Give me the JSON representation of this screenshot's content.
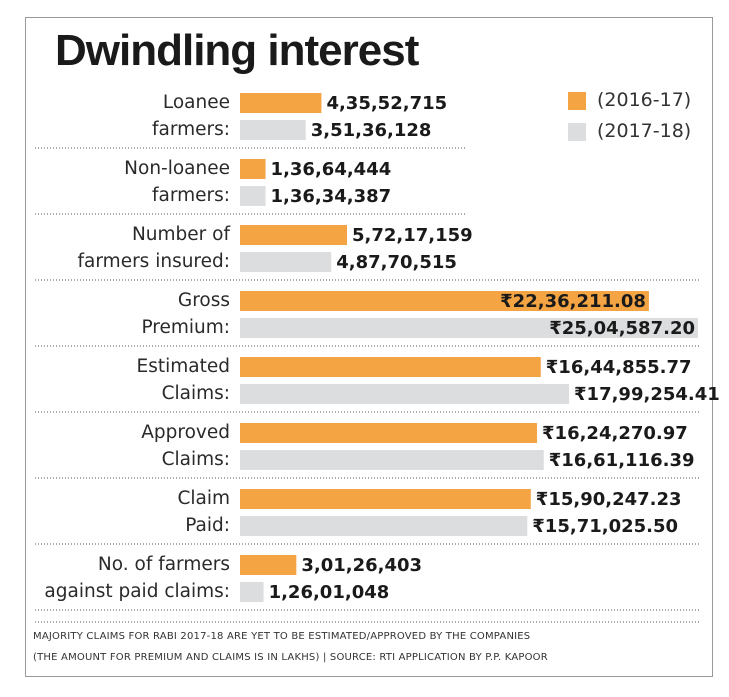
{
  "chart_data": {
    "type": "bar",
    "orientation": "horizontal",
    "title": "Dwindling interest",
    "series": [
      {
        "name": "(2016-17)",
        "color": "#f5a444"
      },
      {
        "name": "(2017-18)",
        "color": "#dcdddf"
      }
    ],
    "categories": [
      {
        "label_lines": [
          "Loanee",
          "farmers:"
        ],
        "values": [
          43552715,
          35136128
        ],
        "display": [
          "4,35,52,715",
          "3,51,36,128"
        ]
      },
      {
        "label_lines": [
          "Non-loanee",
          "farmers:"
        ],
        "values": [
          13664444,
          13634387
        ],
        "display": [
          "1,36,64,444",
          "1,36,34,387"
        ]
      },
      {
        "label_lines": [
          "Number of",
          "farmers insured:"
        ],
        "values": [
          57217159,
          48770515
        ],
        "display": [
          "5,72,17,159",
          "4,87,70,515"
        ]
      },
      {
        "label_lines": [
          "Gross",
          "Premium:"
        ],
        "values": [
          2236211.08,
          2504587.2
        ],
        "display": [
          "₹22,36,211.08",
          "₹25,04,587.20"
        ]
      },
      {
        "label_lines": [
          "Estimated",
          "Claims:"
        ],
        "values": [
          1644855.77,
          1799254.41
        ],
        "display": [
          "₹16,44,855.77",
          "₹17,99,254.41"
        ]
      },
      {
        "label_lines": [
          "Approved",
          "Claims:"
        ],
        "values": [
          1624270.97,
          1661116.39
        ],
        "display": [
          "₹16,24,270.97",
          "₹16,61,116.39"
        ]
      },
      {
        "label_lines": [
          "Claim",
          "Paid:"
        ],
        "values": [
          1590247.23,
          1571025.5
        ],
        "display": [
          "₹15,90,247.23",
          "₹15,71,025.50"
        ]
      },
      {
        "label_lines": [
          "No. of farmers",
          "against paid claims:"
        ],
        "values": [
          30126403,
          12601048
        ],
        "display": [
          "3,01,26,403",
          "1,26,01,048"
        ]
      }
    ],
    "footnotes": [
      "MAJORITY CLAIMS FOR RABI 2017-18 ARE YET TO BE ESTIMATED/APPROVED BY THE COMPANIES",
      "(THE AMOUNT FOR PREMIUM AND CLAIMS IS IN LAKHS) | SOURCE: RTI APPLICATION BY P.P. KAPOOR"
    ]
  }
}
